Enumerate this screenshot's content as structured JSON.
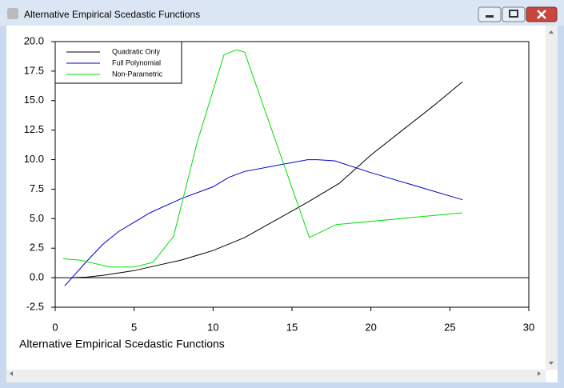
{
  "window_title": "Alternative Empirical Scedastic Functions",
  "chart_data": {
    "type": "line",
    "xlabel": "Alternative Empirical Scedastic Functions",
    "xlim": [
      0,
      30
    ],
    "xticks": [
      0,
      5,
      10,
      15,
      20,
      25,
      30
    ],
    "ylim": [
      -2.5,
      20
    ],
    "yticks": [
      -2.5,
      {
        "value": 0,
        "label": "0.0"
      },
      2.5,
      {
        "value": 5,
        "label": "5.0"
      },
      7.5,
      {
        "value": 10,
        "label": "10.0"
      },
      12.5,
      {
        "value": 15,
        "label": "15.0"
      },
      17.5,
      {
        "value": 20,
        "label": "20.0"
      }
    ],
    "legend": "upper left",
    "zero_line": true,
    "series": [
      {
        "name": "Quadratic Only",
        "color": "#000000",
        "x": [
          1,
          2,
          3,
          4,
          5,
          6,
          8,
          10,
          12,
          14,
          16,
          18,
          20,
          22,
          24,
          25.8
        ],
        "values": [
          0,
          0.05,
          0.2,
          0.4,
          0.6,
          0.9,
          1.5,
          2.3,
          3.4,
          4.9,
          6.4,
          8.0,
          10.4,
          12.5,
          14.6,
          16.6
        ]
      },
      {
        "name": "Full Polynomial",
        "color": "#0000cc",
        "x": [
          0.6,
          2,
          3,
          4,
          5,
          6,
          8,
          10,
          11,
          12,
          14,
          16,
          16.6,
          17.7,
          20,
          25.8
        ],
        "values": [
          -0.7,
          1.4,
          2.8,
          3.9,
          4.7,
          5.5,
          6.7,
          7.7,
          8.5,
          9.0,
          9.5,
          10.0,
          10.0,
          9.9,
          8.9,
          6.6
        ]
      },
      {
        "name": "Non-Parametric",
        "color": "#00e000",
        "x": [
          0.5,
          1.5,
          3.5,
          5,
          6.2,
          7.5,
          9,
          10.7,
          11.5,
          12,
          16.1,
          17.8,
          25.8
        ],
        "values": [
          1.6,
          1.5,
          0.9,
          0.9,
          1.3,
          3.5,
          11.5,
          18.9,
          19.3,
          19.1,
          3.4,
          4.5,
          5.5
        ]
      }
    ]
  }
}
